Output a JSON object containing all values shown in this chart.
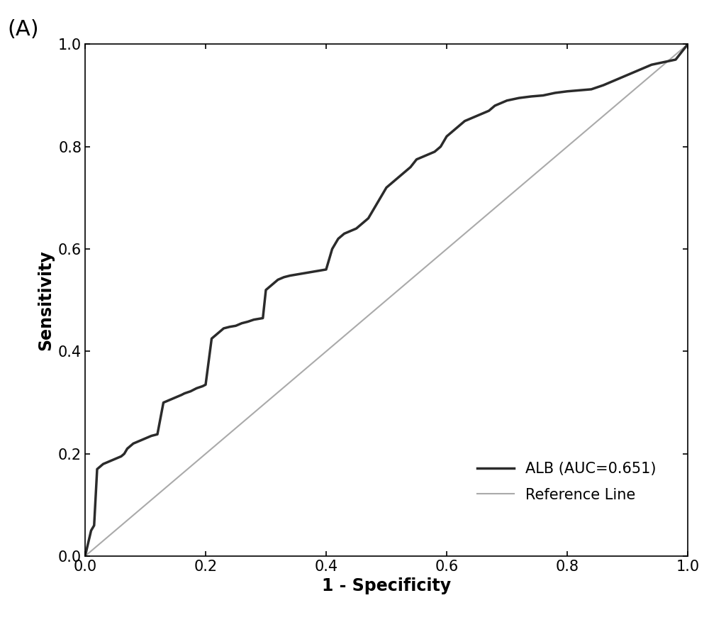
{
  "title_label": "(A)",
  "xlabel": "1 - Specificity",
  "ylabel": "Sensitivity",
  "xlim": [
    0.0,
    1.0
  ],
  "ylim": [
    0.0,
    1.0
  ],
  "xticks": [
    0.0,
    0.2,
    0.4,
    0.6,
    0.8,
    1.0
  ],
  "yticks": [
    0.0,
    0.2,
    0.4,
    0.6,
    0.8,
    1.0
  ],
  "roc_color": "#2b2b2b",
  "ref_color": "#aaaaaa",
  "roc_linewidth": 2.5,
  "ref_linewidth": 1.5,
  "legend_alb": "ALB (AUC=0.651)",
  "legend_ref": "Reference Line",
  "roc_x": [
    0.0,
    0.01,
    0.015,
    0.02,
    0.025,
    0.03,
    0.04,
    0.05,
    0.06,
    0.065,
    0.07,
    0.08,
    0.09,
    0.1,
    0.11,
    0.12,
    0.13,
    0.14,
    0.15,
    0.16,
    0.165,
    0.17,
    0.175,
    0.18,
    0.185,
    0.19,
    0.195,
    0.2,
    0.21,
    0.215,
    0.22,
    0.225,
    0.23,
    0.24,
    0.25,
    0.26,
    0.27,
    0.275,
    0.28,
    0.29,
    0.295,
    0.3,
    0.31,
    0.32,
    0.33,
    0.34,
    0.35,
    0.36,
    0.37,
    0.38,
    0.39,
    0.4,
    0.41,
    0.42,
    0.43,
    0.44,
    0.45,
    0.46,
    0.47,
    0.48,
    0.49,
    0.5,
    0.51,
    0.52,
    0.53,
    0.54,
    0.55,
    0.56,
    0.57,
    0.58,
    0.59,
    0.6,
    0.61,
    0.62,
    0.63,
    0.64,
    0.65,
    0.66,
    0.67,
    0.68,
    0.7,
    0.72,
    0.74,
    0.76,
    0.78,
    0.8,
    0.82,
    0.84,
    0.86,
    0.87,
    0.88,
    0.89,
    0.9,
    0.92,
    0.94,
    0.96,
    0.98,
    1.0
  ],
  "roc_y": [
    0.0,
    0.05,
    0.06,
    0.17,
    0.175,
    0.18,
    0.185,
    0.19,
    0.195,
    0.2,
    0.21,
    0.22,
    0.225,
    0.23,
    0.235,
    0.238,
    0.3,
    0.305,
    0.31,
    0.315,
    0.318,
    0.32,
    0.322,
    0.325,
    0.328,
    0.33,
    0.332,
    0.335,
    0.425,
    0.43,
    0.435,
    0.44,
    0.445,
    0.448,
    0.45,
    0.455,
    0.458,
    0.46,
    0.462,
    0.464,
    0.465,
    0.52,
    0.53,
    0.54,
    0.545,
    0.548,
    0.55,
    0.552,
    0.554,
    0.556,
    0.558,
    0.56,
    0.6,
    0.62,
    0.63,
    0.635,
    0.64,
    0.65,
    0.66,
    0.68,
    0.7,
    0.72,
    0.73,
    0.74,
    0.75,
    0.76,
    0.775,
    0.78,
    0.785,
    0.79,
    0.8,
    0.82,
    0.83,
    0.84,
    0.85,
    0.855,
    0.86,
    0.865,
    0.87,
    0.88,
    0.89,
    0.895,
    0.898,
    0.9,
    0.905,
    0.908,
    0.91,
    0.912,
    0.92,
    0.925,
    0.93,
    0.935,
    0.94,
    0.95,
    0.96,
    0.965,
    0.97,
    1.0
  ],
  "background_color": "#ffffff",
  "tick_fontsize": 15,
  "label_fontsize": 17,
  "legend_fontsize": 15,
  "title_fontsize": 22
}
